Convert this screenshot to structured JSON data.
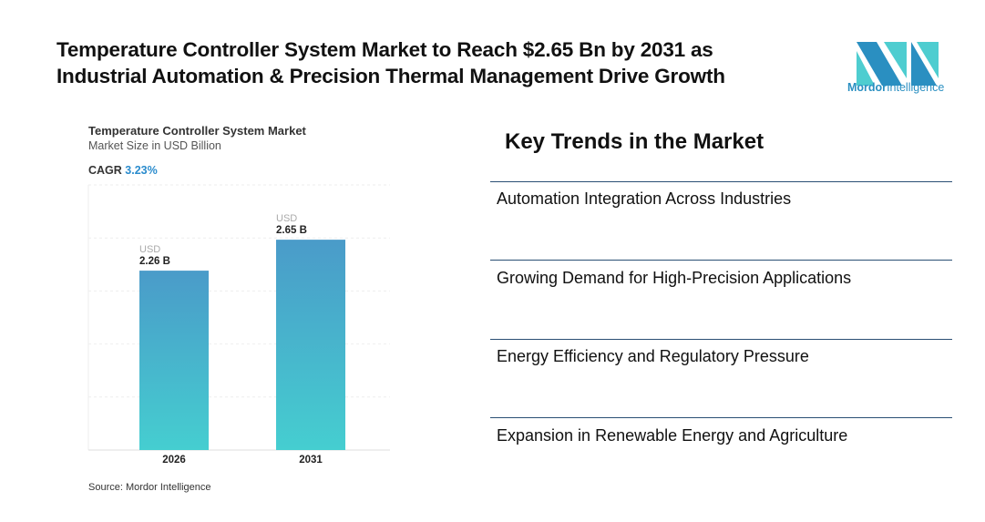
{
  "header": {
    "title_line1": "Temperature Controller System Market to Reach $2.65 Bn by 2031 as",
    "title_line2": "Industrial Automation & Precision Thermal Management Drive Growth"
  },
  "logo": {
    "brand_bold": "Mordor",
    "brand_rest": "Intelligence",
    "colors": {
      "dark": "#2a8fc1",
      "light": "#4ecdd0"
    }
  },
  "chart_data": {
    "type": "bar",
    "title": "Temperature Controller System Market",
    "subtitle": "Market Size in USD Billion",
    "cagr_label": "CAGR",
    "cagr_value": "3.23%",
    "categories": [
      "2026",
      "2031"
    ],
    "values": [
      2.26,
      2.65
    ],
    "value_prefix": "USD",
    "value_labels": [
      "2.26 B",
      "2.65 B"
    ],
    "ylim": [
      0,
      3.34
    ],
    "grid": true,
    "source": "Source: Mordor Intelligence",
    "colors": {
      "top": "#4a9bc9",
      "bottom": "#45ced0"
    }
  },
  "trends": {
    "title": "Key Trends in the Market",
    "items": [
      "Automation Integration Across Industries",
      "Growing Demand for High-Precision Applications",
      "Energy Efficiency and Regulatory Pressure",
      "Expansion in Renewable Energy and Agriculture"
    ]
  }
}
